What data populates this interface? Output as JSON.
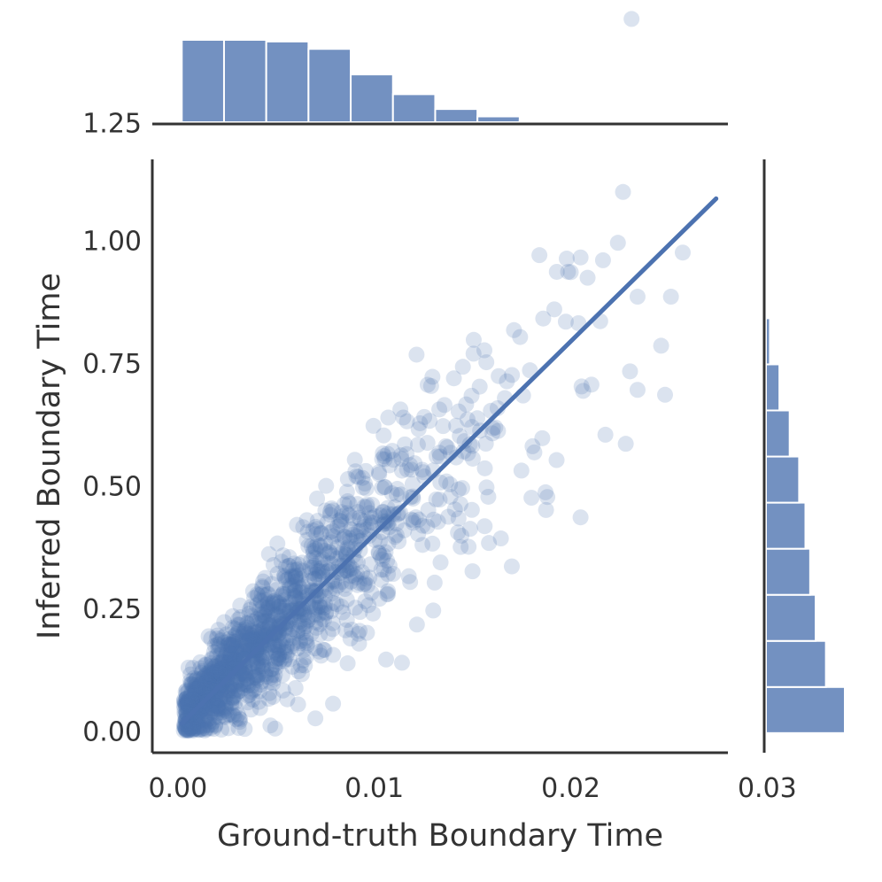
{
  "chart_data": {
    "type": "scatter",
    "subtype": "jointplot with marginal histograms and regression line",
    "title": "",
    "xlabel": "Ground-truth Boundary Time",
    "ylabel": "Inferred Boundary Time",
    "xlim": [
      -0.0013,
      0.028
    ],
    "ylim": [
      -0.04,
      1.17
    ],
    "x_ticks": [
      0.0,
      0.01,
      0.02,
      0.03
    ],
    "x_tick_labels": [
      "0.00",
      "0.01",
      "0.02",
      "0.03"
    ],
    "y_ticks": [
      0.0,
      0.25,
      0.5,
      0.75,
      1.0,
      1.25
    ],
    "y_tick_labels": [
      "0.00",
      "0.25",
      "0.50",
      "0.75",
      "1.00",
      "1.25"
    ],
    "grid": false,
    "legend": "none",
    "colors": {
      "points": "#4c72b0",
      "line": "#4c72b0",
      "bars": "#4c72b0",
      "axes": "#333333"
    },
    "regression_line": {
      "x": [
        0.0002,
        0.0274
      ],
      "y": [
        0.02,
        1.09
      ]
    },
    "scatter": {
      "n_points_estimate": 20000,
      "marker_opacity": 0.2,
      "description_points": [
        [
          0.0224,
          1.0
        ],
        [
          0.0205,
          0.97
        ],
        [
          0.0257,
          0.98
        ],
        [
          0.02,
          0.94
        ],
        [
          0.0234,
          0.89
        ],
        [
          0.0251,
          0.89
        ],
        [
          0.0215,
          0.84
        ],
        [
          0.0246,
          0.79
        ],
        [
          0.0234,
          0.7
        ],
        [
          0.0248,
          0.69
        ],
        [
          0.0228,
          0.59
        ],
        [
          0.0205,
          0.44
        ],
        [
          0.0148,
          0.38
        ],
        [
          0.017,
          0.34
        ],
        [
          0.018,
          0.48
        ],
        [
          0.0106,
          0.15
        ],
        [
          0.0079,
          0.06
        ],
        [
          0.007,
          0.03
        ],
        [
          0.015,
          0.33
        ],
        [
          0.013,
          0.25
        ]
      ]
    },
    "marginal_x_histogram": {
      "bin_edges": [
        0.0002,
        0.00235,
        0.0045,
        0.00665,
        0.0088,
        0.01095,
        0.0131,
        0.01525,
        0.0174,
        0.01955,
        0.0217,
        0.02385
      ],
      "relative_heights": [
        1.0,
        1.0,
        0.98,
        0.89,
        0.58,
        0.34,
        0.16,
        0.07,
        0.02,
        0.01,
        0.003
      ]
    },
    "marginal_y_histogram": {
      "bin_edges": [
        0.0,
        0.094,
        0.188,
        0.282,
        0.376,
        0.47,
        0.564,
        0.658,
        0.752,
        0.846
      ],
      "relative_heights": [
        1.0,
        0.76,
        0.63,
        0.56,
        0.5,
        0.42,
        0.3,
        0.17,
        0.05
      ]
    }
  }
}
